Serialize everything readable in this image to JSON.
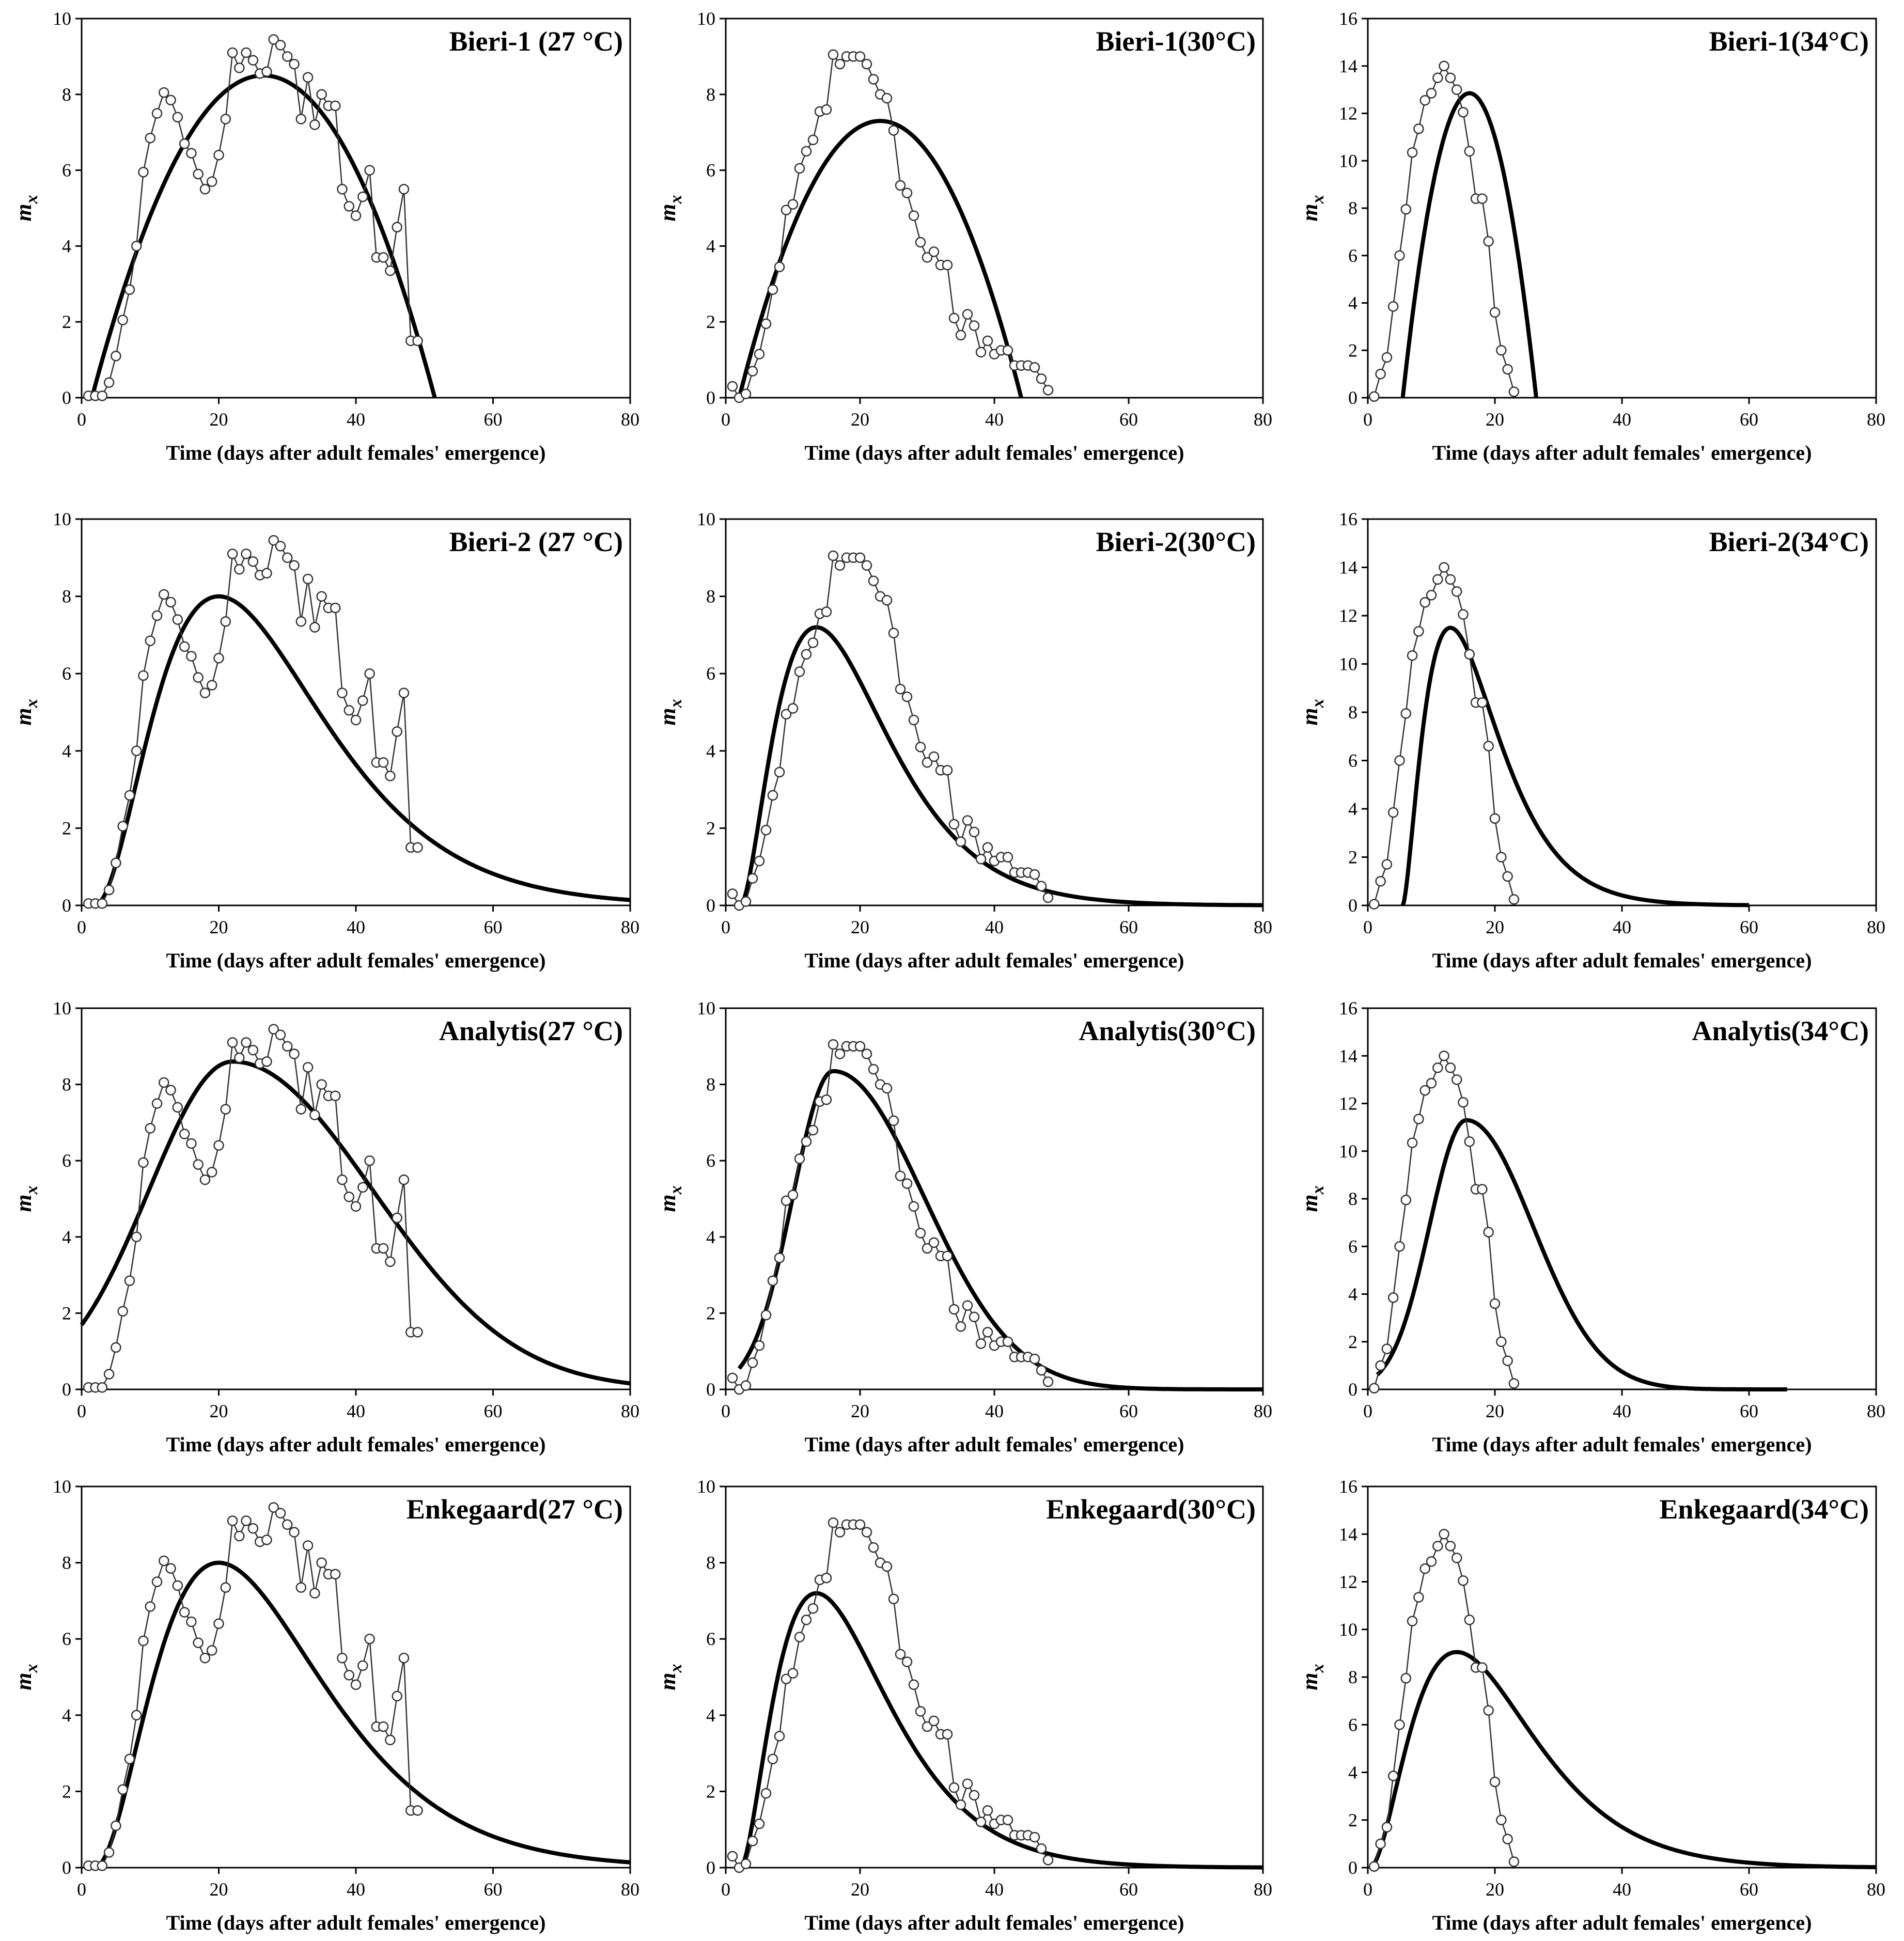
{
  "figure": {
    "y_axis_symbol": "m",
    "y_axis_subscript": "x"
  },
  "colors": {
    "observed": "#333333",
    "fit": "#000000",
    "marker_fill": "#ffffff",
    "frame": "#000000"
  },
  "observed": {
    "t27": [
      1,
      2,
      3,
      4,
      5,
      6,
      7,
      8,
      9,
      10,
      11,
      12,
      13,
      14,
      15,
      16,
      17,
      18,
      19,
      20,
      21,
      22,
      23,
      24,
      25,
      26,
      27,
      28,
      29,
      30,
      31,
      32,
      33,
      34,
      35,
      36,
      37,
      38,
      39,
      40,
      41,
      42,
      43,
      44,
      45,
      46,
      47,
      48,
      49
    ],
    "m27": [
      0.05,
      0.05,
      0.05,
      0.4,
      1.1,
      2.05,
      2.85,
      4.0,
      5.95,
      6.85,
      7.5,
      8.05,
      7.85,
      7.4,
      6.7,
      6.45,
      5.9,
      5.5,
      5.7,
      6.4,
      7.35,
      9.1,
      8.7,
      9.1,
      8.9,
      8.55,
      8.6,
      9.45,
      9.3,
      9.0,
      8.8,
      7.35,
      8.45,
      7.2,
      8.0,
      7.7,
      7.7,
      5.5,
      5.05,
      4.8,
      5.3,
      6.0,
      3.7,
      3.7,
      3.35,
      4.5,
      5.5,
      1.5,
      1.5
    ],
    "t30": [
      1,
      2,
      3,
      4,
      5,
      6,
      7,
      8,
      9,
      10,
      11,
      12,
      13,
      14,
      15,
      16,
      17,
      18,
      19,
      20,
      21,
      22,
      23,
      24,
      25,
      26,
      27,
      28,
      29,
      30,
      31,
      32,
      33,
      34,
      35,
      36,
      37,
      38,
      39,
      40,
      41,
      42,
      43,
      44,
      45,
      46,
      47,
      48
    ],
    "m30": [
      0.3,
      0.0,
      0.1,
      0.7,
      1.15,
      1.95,
      2.85,
      3.45,
      4.95,
      5.1,
      6.05,
      6.5,
      6.8,
      7.55,
      7.6,
      9.05,
      8.8,
      9.0,
      9.0,
      9.0,
      8.8,
      8.4,
      8.0,
      7.9,
      7.05,
      5.6,
      5.4,
      4.8,
      4.1,
      3.7,
      3.85,
      3.5,
      3.5,
      2.1,
      1.65,
      2.2,
      1.9,
      1.2,
      1.5,
      1.15,
      1.25,
      1.25,
      0.85,
      0.85,
      0.85,
      0.8,
      0.5,
      0.2
    ],
    "t34": [
      1,
      2,
      3,
      4,
      5,
      6,
      7,
      8,
      9,
      10,
      11,
      12,
      13,
      14,
      15,
      16,
      17,
      18,
      19,
      20,
      21,
      22,
      23
    ],
    "m34": [
      0.05,
      1.0,
      1.7,
      3.85,
      6.0,
      7.95,
      10.35,
      11.35,
      12.55,
      12.85,
      13.5,
      14.0,
      13.5,
      13.0,
      12.05,
      10.4,
      8.4,
      8.4,
      6.6,
      3.6,
      2.0,
      1.2,
      0.25
    ]
  },
  "chart_data": [
    {
      "type": "line",
      "title": "Bieri-1 (27 °C)",
      "xlabel": "Time (days after adult females' emergence)",
      "ylabel": "m",
      "ylabel_sub": "x",
      "xlim": [
        0,
        80
      ],
      "ylim": [
        0,
        10
      ],
      "xticks": [
        0,
        20,
        40,
        60,
        80
      ],
      "yticks": [
        0,
        2,
        4,
        6,
        8,
        10
      ],
      "series": [
        {
          "name": "observed",
          "ref": "27"
        },
        {
          "name": "fitted",
          "model": "quad",
          "params": {
            "a": 1.5,
            "b": 51.5,
            "peak": 8.5
          }
        }
      ]
    },
    {
      "type": "line",
      "title": "Bieri-1(30°C)",
      "xlabel": "Time (days after adult females' emergence)",
      "ylabel": "m",
      "ylabel_sub": "x",
      "xlim": [
        0,
        80
      ],
      "ylim": [
        0,
        10
      ],
      "xticks": [
        0,
        20,
        40,
        60,
        80
      ],
      "yticks": [
        0,
        2,
        4,
        6,
        8,
        10
      ],
      "series": [
        {
          "name": "observed",
          "ref": "30"
        },
        {
          "name": "fitted",
          "model": "quad",
          "params": {
            "a": 2,
            "b": 44,
            "peak": 7.3
          }
        }
      ]
    },
    {
      "type": "line",
      "title": "Bieri-1(34°C)",
      "xlabel": "Time (days after adult females' emergence)",
      "ylabel": "m",
      "ylabel_sub": "x",
      "xlim": [
        0,
        80
      ],
      "ylim": [
        0,
        16
      ],
      "xticks": [
        0,
        20,
        40,
        60,
        80
      ],
      "yticks": [
        0,
        2,
        4,
        6,
        8,
        10,
        12,
        14,
        16
      ],
      "series": [
        {
          "name": "observed",
          "ref": "34"
        },
        {
          "name": "fitted",
          "model": "quad",
          "params": {
            "a": 5.5,
            "b": 26.5,
            "peak": 12.85
          }
        }
      ]
    },
    {
      "type": "line",
      "title": "Bieri-2 (27 °C)",
      "xlabel": "Time (days after adult females' emergence)",
      "ylabel": "m",
      "ylabel_sub": "x",
      "xlim": [
        0,
        80
      ],
      "ylim": [
        0,
        10
      ],
      "xticks": [
        0,
        20,
        40,
        60,
        80
      ],
      "yticks": [
        0,
        2,
        4,
        6,
        8,
        10
      ],
      "series": [
        {
          "name": "observed",
          "ref": "27"
        },
        {
          "name": "fitted",
          "model": "gamma",
          "params": {
            "t0": 1.8,
            "tp": 20,
            "peak": 8.0,
            "k": 2.2,
            "xend": 80
          }
        }
      ]
    },
    {
      "type": "line",
      "title": "Bieri-2(30°C)",
      "xlabel": "Time (days after adult females' emergence)",
      "ylabel": "m",
      "ylabel_sub": "x",
      "xlim": [
        0,
        80
      ],
      "ylim": [
        0,
        10
      ],
      "xticks": [
        0,
        20,
        40,
        60,
        80
      ],
      "yticks": [
        0,
        2,
        4,
        6,
        8,
        10
      ],
      "series": [
        {
          "name": "observed",
          "ref": "30"
        },
        {
          "name": "fitted",
          "model": "gamma",
          "params": {
            "t0": 2.2,
            "tp": 13.5,
            "peak": 7.2,
            "k": 1.8,
            "xend": 80
          }
        }
      ]
    },
    {
      "type": "line",
      "title": "Bieri-2(34°C)",
      "xlabel": "Time (days after adult females' emergence)",
      "ylabel": "m",
      "ylabel_sub": "x",
      "xlim": [
        0,
        80
      ],
      "ylim": [
        0,
        16
      ],
      "xticks": [
        0,
        20,
        40,
        60,
        80
      ],
      "yticks": [
        0,
        2,
        4,
        6,
        8,
        10,
        12,
        14,
        16
      ],
      "series": [
        {
          "name": "observed",
          "ref": "34"
        },
        {
          "name": "fitted",
          "model": "gamma",
          "params": {
            "t0": 5.5,
            "tp": 13,
            "peak": 11.5,
            "k": 1.6,
            "xend": 60
          }
        }
      ]
    },
    {
      "type": "line",
      "title": "Analytis(27 °C)",
      "xlabel": "Time (days after adult females' emergence)",
      "ylabel": "m",
      "ylabel_sub": "x",
      "xlim": [
        0,
        80
      ],
      "ylim": [
        0,
        10
      ],
      "xticks": [
        0,
        20,
        40,
        60,
        80
      ],
      "yticks": [
        0,
        2,
        4,
        6,
        8,
        10
      ],
      "series": [
        {
          "name": "observed",
          "ref": "27"
        },
        {
          "name": "fitted",
          "model": "gauss",
          "params": {
            "t0": 0,
            "tp": 22,
            "peak": 8.6,
            "sl": 12.2,
            "sr": 20.5,
            "xend": 80
          }
        }
      ]
    },
    {
      "type": "line",
      "title": "Analytis(30°C)",
      "xlabel": "Time (days after adult females' emergence)",
      "ylabel": "m",
      "ylabel_sub": "x",
      "xlim": [
        0,
        80
      ],
      "ylim": [
        0,
        10
      ],
      "xticks": [
        0,
        20,
        40,
        60,
        80
      ],
      "yticks": [
        0,
        2,
        4,
        6,
        8,
        10
      ],
      "series": [
        {
          "name": "observed",
          "ref": "30"
        },
        {
          "name": "fitted",
          "model": "gauss",
          "params": {
            "t0": 2,
            "tp": 16,
            "peak": 8.35,
            "sl": 6.0,
            "sr": 13.5,
            "xend": 80
          }
        }
      ]
    },
    {
      "type": "line",
      "title": "Analytis(34°C)",
      "xlabel": "Time (days after adult females' emergence)",
      "ylabel": "m",
      "ylabel_sub": "x",
      "xlim": [
        0,
        80
      ],
      "ylim": [
        0,
        16
      ],
      "xticks": [
        0,
        20,
        40,
        60,
        80
      ],
      "yticks": [
        0,
        2,
        4,
        6,
        8,
        10,
        12,
        14,
        16
      ],
      "series": [
        {
          "name": "observed",
          "ref": "34"
        },
        {
          "name": "fitted",
          "model": "gauss",
          "params": {
            "t0": 1.5,
            "tp": 15.5,
            "peak": 11.3,
            "sl": 5.8,
            "sr": 10.5,
            "xend": 66
          }
        }
      ]
    },
    {
      "type": "line",
      "title": "Enkegaard(27 °C)",
      "xlabel": "Time (days after adult females' emergence)",
      "ylabel": "m",
      "ylabel_sub": "x",
      "xlim": [
        0,
        80
      ],
      "ylim": [
        0,
        10
      ],
      "xticks": [
        0,
        20,
        40,
        60,
        80
      ],
      "yticks": [
        0,
        2,
        4,
        6,
        8,
        10
      ],
      "series": [
        {
          "name": "observed",
          "ref": "27"
        },
        {
          "name": "fitted",
          "model": "gamma",
          "params": {
            "t0": 1.8,
            "tp": 20,
            "peak": 8.0,
            "k": 2.2,
            "xend": 80
          }
        }
      ]
    },
    {
      "type": "line",
      "title": "Enkegaard(30°C)",
      "xlabel": "Time (days after adult females' emergence)",
      "ylabel": "m",
      "ylabel_sub": "x",
      "xlim": [
        0,
        80
      ],
      "ylim": [
        0,
        10
      ],
      "xticks": [
        0,
        20,
        40,
        60,
        80
      ],
      "yticks": [
        0,
        2,
        4,
        6,
        8,
        10
      ],
      "series": [
        {
          "name": "observed",
          "ref": "30"
        },
        {
          "name": "fitted",
          "model": "gamma",
          "params": {
            "t0": 2.2,
            "tp": 13.5,
            "peak": 7.2,
            "k": 1.8,
            "xend": 80
          }
        }
      ]
    },
    {
      "type": "line",
      "title": "Enkegaard(34°C)",
      "xlabel": "Time (days after adult females' emergence)",
      "ylabel": "m",
      "ylabel_sub": "x",
      "xlim": [
        0,
        80
      ],
      "ylim": [
        0,
        16
      ],
      "xticks": [
        0,
        20,
        40,
        60,
        80
      ],
      "yticks": [
        0,
        2,
        4,
        6,
        8,
        10,
        12,
        14,
        16
      ],
      "series": [
        {
          "name": "observed",
          "ref": "34"
        },
        {
          "name": "fitted",
          "model": "gamma",
          "params": {
            "t0": 0.3,
            "tp": 14,
            "peak": 9.05,
            "k": 2.0,
            "xend": 80
          }
        }
      ]
    }
  ]
}
